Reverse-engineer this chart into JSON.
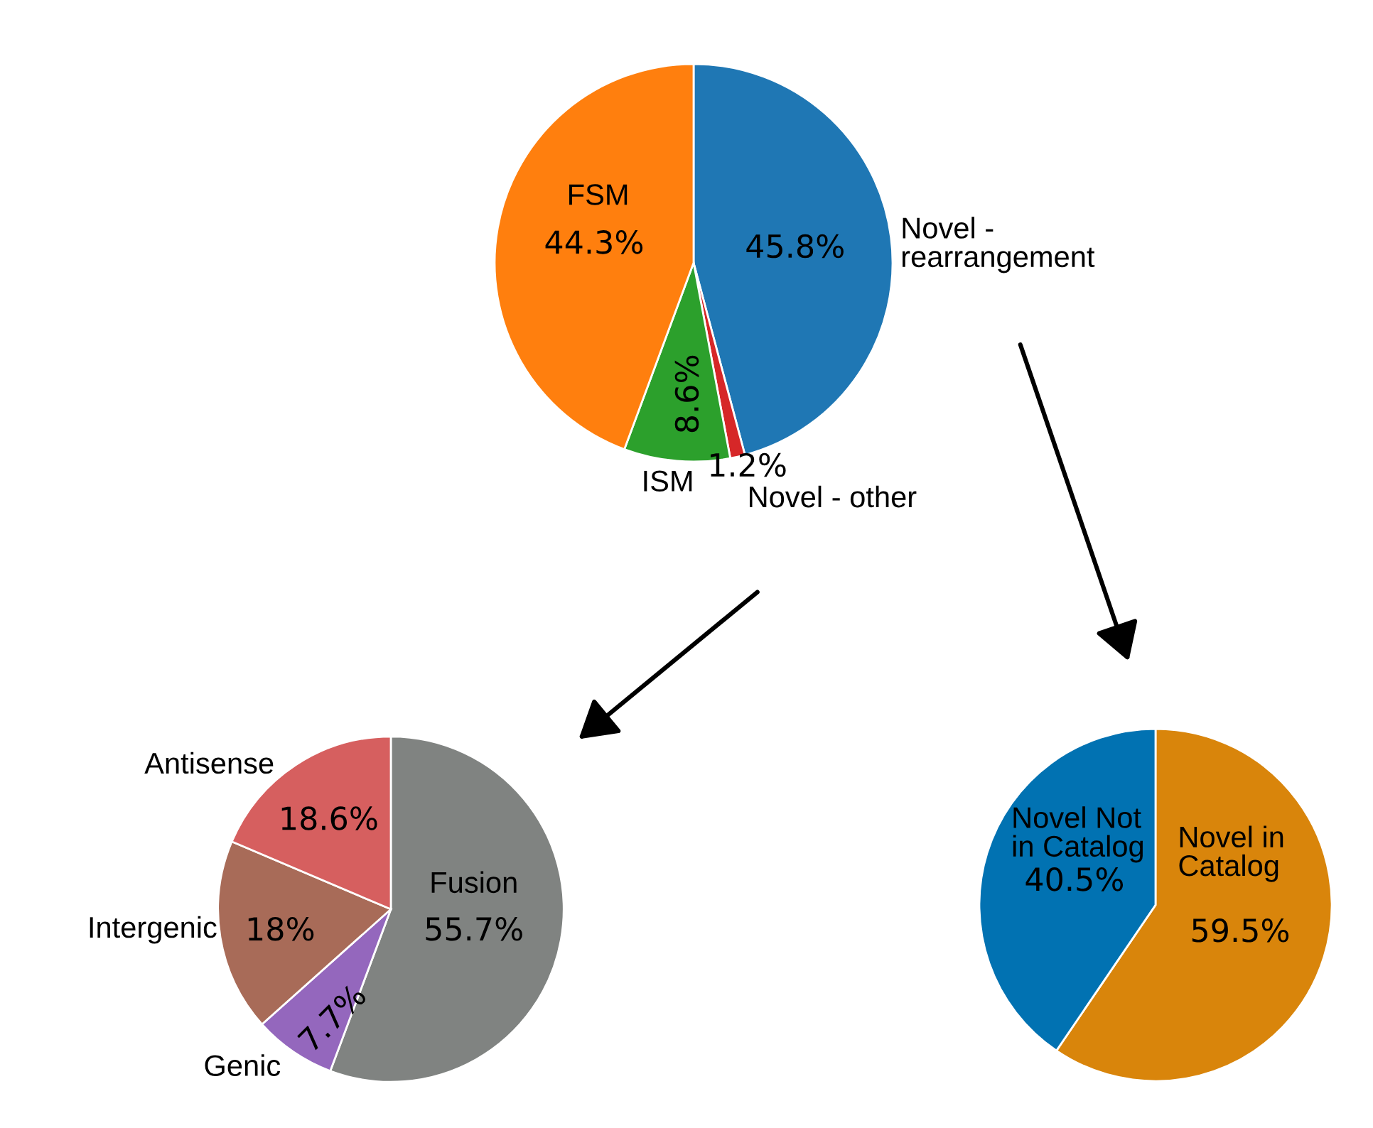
{
  "chart_data": [
    {
      "type": "pie",
      "categories": [
        "Novel -\nrearrangement",
        "Novel - other",
        "ISM",
        "FSM"
      ],
      "values": [
        45.8,
        1.2,
        8.6,
        44.3
      ],
      "colors": [
        "#1f77b4",
        "#d62728",
        "#2ca02c",
        "#ff7f0e"
      ],
      "value_labels": [
        "45.8%",
        "1.2%",
        "8.6%",
        "44.3%"
      ]
    },
    {
      "type": "pie",
      "categories": [
        "Fusion",
        "Genic",
        "Intergenic",
        "Antisense"
      ],
      "values": [
        55.7,
        7.7,
        18,
        18.6
      ],
      "colors": [
        "#808381",
        "#9467bd",
        "#a86b58",
        "#d65f5f"
      ],
      "value_labels": [
        "55.7%",
        "7.7%",
        "18%",
        "18.6%"
      ]
    },
    {
      "type": "pie",
      "categories": [
        "Novel in\nCatalog",
        "Novel Not\nin Catalog"
      ],
      "values": [
        59.5,
        40.5
      ],
      "colors": [
        "#d9850b",
        "#0172b2"
      ],
      "value_labels": [
        "59.5%",
        "40.5%"
      ]
    }
  ]
}
